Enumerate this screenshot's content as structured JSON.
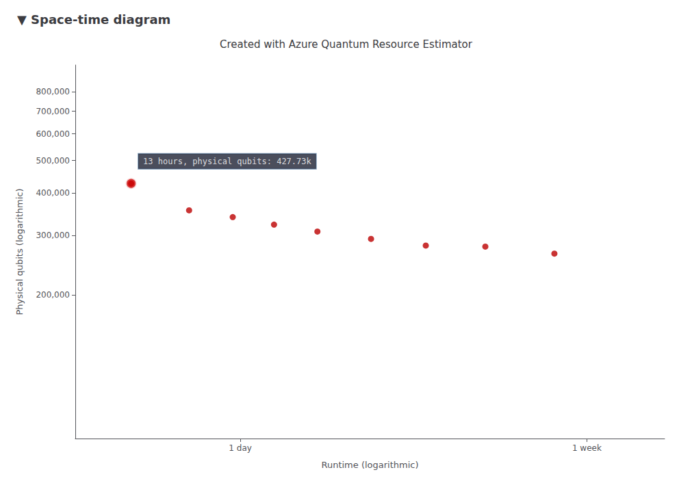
{
  "chart_data": {
    "type": "scatter",
    "title": "Created with Azure Quantum Resource Estimator",
    "subtitle": "▼ Space-time diagram",
    "xlabel": "Runtime (logarithmic)",
    "ylabel": "Physical qubits (logarithmic)",
    "x": [
      13,
      18,
      23,
      29,
      37,
      50,
      68,
      95,
      140
    ],
    "values": [
      427730,
      356000,
      340000,
      323000,
      308000,
      293000,
      280000,
      278000,
      265000
    ],
    "color": "#bb0000",
    "log": true,
    "grid": false,
    "xlim": [
      9.5,
      260
    ],
    "ylim": [
      75000,
      960000
    ],
    "xticks": [
      {
        "value": 24,
        "label": "1 day"
      },
      {
        "value": 168,
        "label": "1 week"
      }
    ],
    "yticks": [
      {
        "value": 200000,
        "label": "200,000"
      },
      {
        "value": 300000,
        "label": "300,000"
      },
      {
        "value": 400000,
        "label": "400,000"
      },
      {
        "value": 500000,
        "label": "500,000"
      },
      {
        "value": 600000,
        "label": "600,000"
      },
      {
        "value": 700000,
        "label": "700,000"
      },
      {
        "value": 800000,
        "label": "800,000"
      }
    ],
    "annotations": [
      {
        "text": "13 hours, physical qubits: 427.73k",
        "x": 13,
        "y": 427730,
        "color": "#cc0000"
      }
    ]
  }
}
